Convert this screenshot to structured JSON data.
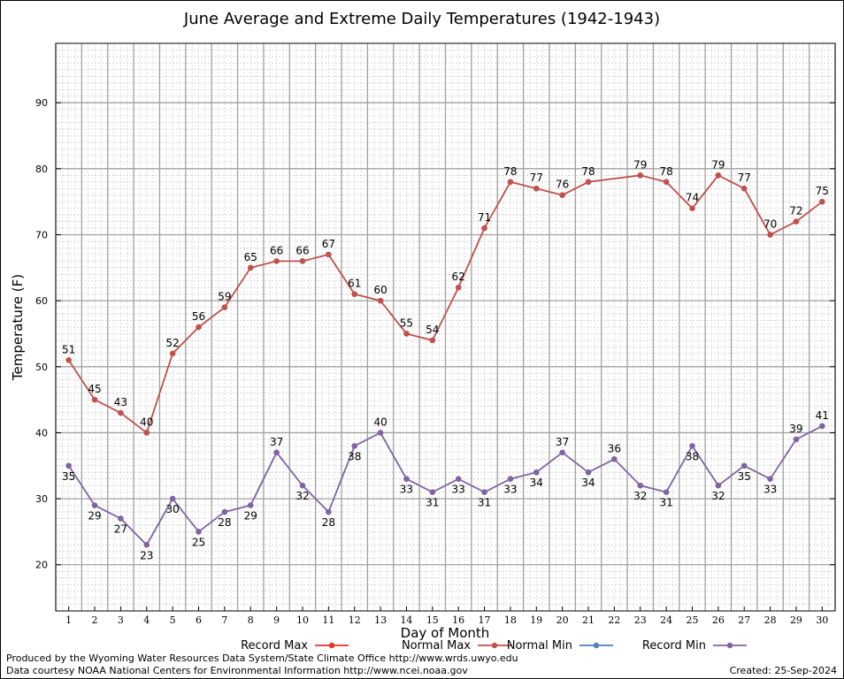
{
  "chart_data": {
    "type": "line",
    "title": "June Average and Extreme Daily Temperatures (1942-1943)",
    "xlabel": "Day of Month",
    "ylabel": "Temperature (F)",
    "xlim": [
      0.5,
      30.5
    ],
    "ylim": [
      13,
      99
    ],
    "yticks": [
      20,
      30,
      40,
      50,
      60,
      70,
      80,
      90
    ],
    "x": [
      1,
      2,
      3,
      4,
      5,
      6,
      7,
      8,
      9,
      10,
      11,
      12,
      13,
      14,
      15,
      16,
      17,
      18,
      19,
      20,
      21,
      22,
      23,
      24,
      25,
      26,
      27,
      28,
      29,
      30
    ],
    "grid": true,
    "legend_position": "bottom",
    "legend": [
      {
        "name": "Record Max",
        "color": "#e8302a"
      },
      {
        "name": "Normal Max",
        "color": "#c0504d"
      },
      {
        "name": "Normal Min",
        "color": "#4f81bd"
      },
      {
        "name": "Record Min",
        "color": "#8064a2"
      }
    ],
    "series": [
      {
        "name": "Normal Max",
        "color": "#c0504d",
        "values": [
          51,
          45,
          43,
          40,
          52,
          56,
          59,
          65,
          66,
          66,
          67,
          61,
          60,
          55,
          54,
          62,
          71,
          78,
          77,
          76,
          78,
          null,
          79,
          78,
          74,
          79,
          77,
          70,
          72,
          75
        ],
        "labels": [
          "51",
          "45",
          "43",
          "40",
          "52",
          "56",
          "59",
          "65",
          "66",
          "66",
          "67",
          "61",
          "60",
          "55",
          "54",
          "62",
          "71",
          "78",
          "77",
          "76",
          "78",
          "",
          "79",
          "78",
          "74",
          "79",
          "77",
          "70",
          "72",
          "75"
        ]
      },
      {
        "name": "Record Min",
        "color": "#8064a2",
        "values": [
          35,
          29,
          27,
          23,
          30,
          25,
          28,
          29,
          37,
          32,
          28,
          38,
          40,
          33,
          31,
          33,
          31,
          33,
          34,
          37,
          34,
          36,
          32,
          31,
          38,
          32,
          35,
          33,
          39,
          41
        ],
        "labels": [
          "35",
          "29",
          "27",
          "23",
          "30",
          "25",
          "28",
          "29",
          "37",
          "32",
          "28",
          "38",
          "40",
          "33",
          "31",
          "33",
          "31",
          "33",
          "34",
          "37",
          "34",
          "36",
          "32",
          "31",
          "38",
          "32",
          "35",
          "33",
          "39",
          "41"
        ]
      }
    ]
  },
  "footer": {
    "credit_line1": "Produced by the Wyoming Water Resources Data System/State Climate Office http://www.wrds.uwyo.edu",
    "credit_line2": "Data courtesy NOAA National Centers for Environmental Information http://www.ncei.noaa.gov",
    "created": "Created:  25-Sep-2024"
  }
}
